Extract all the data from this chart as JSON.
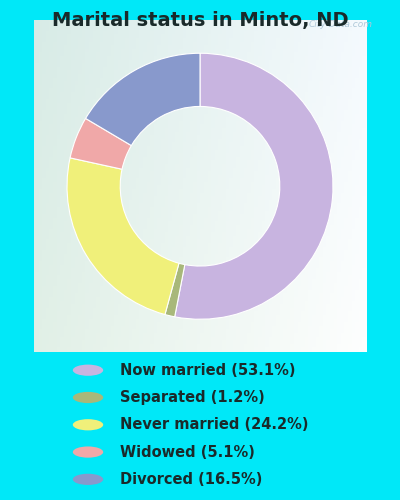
{
  "title": "Marital status in Minto, ND",
  "slices": [
    {
      "label": "Now married (53.1%)",
      "value": 53.1,
      "color": "#c8b4e0"
    },
    {
      "label": "Separated (1.2%)",
      "value": 1.2,
      "color": "#a8b87a"
    },
    {
      "label": "Never married (24.2%)",
      "value": 24.2,
      "color": "#f0f07a"
    },
    {
      "label": "Widowed (5.1%)",
      "value": 5.1,
      "color": "#f0a8a8"
    },
    {
      "label": "Divorced (16.5%)",
      "value": 16.5,
      "color": "#8899cc"
    }
  ],
  "bg_cyan": "#00e8f8",
  "bg_chart_grad_left": "#d0ece0",
  "bg_chart_grad_right": "#f0f8f8",
  "watermark": "City-Data.com",
  "title_fontsize": 14,
  "legend_fontsize": 10.5,
  "start_angle": 90,
  "donut_width": 0.4
}
